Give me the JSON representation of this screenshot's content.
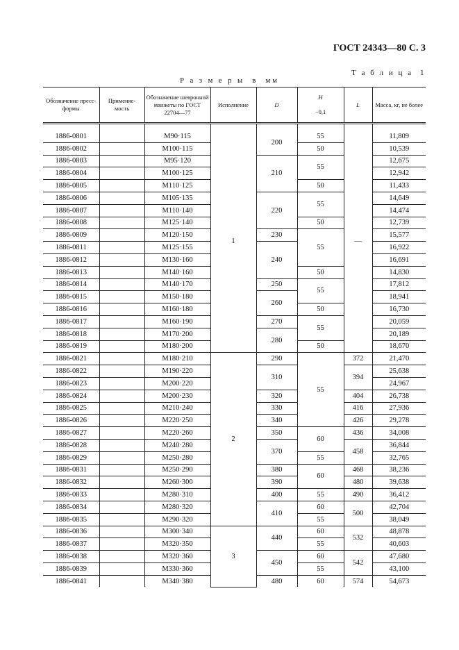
{
  "header": "ГОСТ 24343—80 С. 3",
  "table_number": "Т а б л и ц а  1",
  "sizes_note": "Р а з м е р ы  в  мм",
  "columns": {
    "designation": "Обозначение пресс-формы",
    "applicability": "Применяе-мость",
    "cuff": "Обозначение шевронной манжеты по ГОСТ 22704—77",
    "version": "Исполнение",
    "D": "D",
    "H": "H",
    "H_tol": "−0,1",
    "L": "L",
    "mass": "Масса, кг, не более"
  },
  "rows": [
    [
      "1886-0801",
      "М90·115",
      "11,809"
    ],
    [
      "1886-0802",
      "М100·115",
      "10,539"
    ],
    [
      "1886-0803",
      "М95·120",
      "12,675"
    ],
    [
      "1886-0804",
      "М100·125",
      "12,942"
    ],
    [
      "1886-0805",
      "М110·125",
      "11,433"
    ],
    [
      "1886-0806",
      "М105·135",
      "14,649"
    ],
    [
      "1886-0807",
      "М110·140",
      "14,474"
    ],
    [
      "1886-0808",
      "М125·140",
      "12,739"
    ],
    [
      "1886-0809",
      "М120·150",
      "15,577"
    ],
    [
      "1886-0811",
      "М125·155",
      "16,922"
    ],
    [
      "1886-0812",
      "М130·160",
      "16,691"
    ],
    [
      "1886-0813",
      "М140·160",
      "14,830"
    ],
    [
      "1886-0814",
      "М140·170",
      "17,812"
    ],
    [
      "1886-0815",
      "М150·180",
      "18,941"
    ],
    [
      "1886-0816",
      "М160·180",
      "16,730"
    ],
    [
      "1886-0817",
      "М160·190",
      "20,059"
    ],
    [
      "1886-0818",
      "М170·200",
      "20,189"
    ],
    [
      "1886-0819",
      "М180·200",
      "18,670"
    ],
    [
      "1886-0821",
      "М180·210",
      "21,470"
    ],
    [
      "1886-0822",
      "М190·220",
      "25,638"
    ],
    [
      "1886-0823",
      "М200·220",
      "24,967"
    ],
    [
      "1886-0824",
      "М200·230",
      "26,738"
    ],
    [
      "1886-0825",
      "М210·240",
      "27,936"
    ],
    [
      "1886-0826",
      "М220·250",
      "29,278"
    ],
    [
      "1886-0827",
      "М220·260",
      "34,008"
    ],
    [
      "1886-0828",
      "М240·280",
      "36,844"
    ],
    [
      "1886-0829",
      "М250·280",
      "32,765"
    ],
    [
      "1886-0831",
      "М250·290",
      "38,236"
    ],
    [
      "1886-0832",
      "М260·300",
      "39,638"
    ],
    [
      "1886-0833",
      "М280·310",
      "36,412"
    ],
    [
      "1886-0834",
      "М280·320",
      "42,704"
    ],
    [
      "1886-0835",
      "М290·320",
      "38,049"
    ],
    [
      "1886-0836",
      "М300·340",
      "48,878"
    ],
    [
      "1886-0837",
      "М320·350",
      "40,603"
    ],
    [
      "1886-0838",
      "М320·360",
      "47,680"
    ],
    [
      "1886-0839",
      "М330·360",
      "43,100"
    ],
    [
      "1886-0841",
      "М340·380",
      "54,673"
    ]
  ],
  "version_groups": [
    [
      "1",
      18
    ],
    [
      "2",
      14
    ],
    [
      "3",
      5
    ]
  ],
  "D_groups": [
    [
      "200",
      2
    ],
    [
      "210",
      3
    ],
    [
      "220",
      3
    ],
    [
      "230",
      1
    ],
    [
      "240",
      3
    ],
    [
      "250",
      1
    ],
    [
      "260",
      2
    ],
    [
      "270",
      1
    ],
    [
      "280",
      2
    ],
    [
      "290",
      1
    ],
    [
      "310",
      2
    ],
    [
      "320",
      1
    ],
    [
      "330",
      1
    ],
    [
      "340",
      1
    ],
    [
      "350",
      1
    ],
    [
      "370",
      2
    ],
    [
      "380",
      1
    ],
    [
      "390",
      1
    ],
    [
      "400",
      1
    ],
    [
      "410",
      2
    ],
    [
      "440",
      2
    ],
    [
      "450",
      2
    ],
    [
      "480",
      1
    ]
  ],
  "H_groups": [
    [
      "55",
      1
    ],
    [
      "50",
      1
    ],
    [
      "55",
      2
    ],
    [
      "50",
      1
    ],
    [
      "55",
      2
    ],
    [
      "50",
      1
    ],
    [
      "55",
      3
    ],
    [
      "50",
      1
    ],
    [
      "55",
      2
    ],
    [
      "50",
      1
    ],
    [
      "55",
      2
    ],
    [
      "50",
      1
    ],
    [
      "55",
      6
    ],
    [
      "60",
      2
    ],
    [
      "55",
      1
    ],
    [
      "60",
      2
    ],
    [
      "55",
      1
    ],
    [
      "60",
      1
    ],
    [
      "55",
      1
    ],
    [
      "60",
      1
    ],
    [
      "55",
      1
    ],
    [
      "60",
      1
    ],
    [
      "55",
      1
    ],
    [
      "60",
      1
    ]
  ],
  "L_groups": [
    [
      "—",
      18
    ],
    [
      "372",
      1
    ],
    [
      "394",
      2
    ],
    [
      "404",
      1
    ],
    [
      "416",
      1
    ],
    [
      "426",
      1
    ],
    [
      "436",
      1
    ],
    [
      "458",
      2
    ],
    [
      "468",
      1
    ],
    [
      "480",
      1
    ],
    [
      "490",
      1
    ],
    [
      "500",
      2
    ],
    [
      "532",
      2
    ],
    [
      "542",
      2
    ],
    [
      "574",
      1
    ]
  ]
}
